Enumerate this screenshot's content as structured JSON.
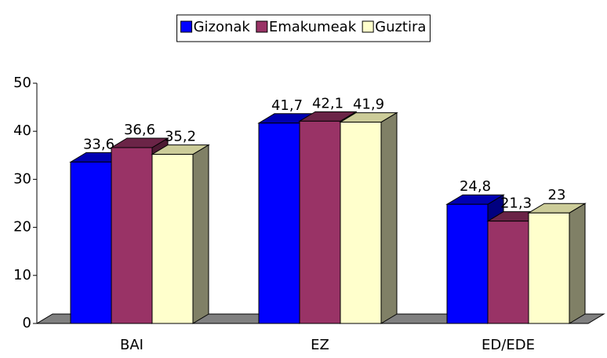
{
  "chart_data": {
    "type": "bar3d",
    "categories": [
      "BAI",
      "EZ",
      "ED/EDE"
    ],
    "series": [
      {
        "name": "Gizonak",
        "color": "#0000ff",
        "values": [
          33.6,
          41.7,
          24.8
        ],
        "value_labels": [
          "33,6",
          "41,7",
          "24,8"
        ]
      },
      {
        "name": "Emakumeak",
        "color": "#993366",
        "values": [
          36.6,
          42.1,
          21.3
        ],
        "value_labels": [
          "36,6",
          "42,1",
          "21,3"
        ]
      },
      {
        "name": "Guztira",
        "color": "#ffffcc",
        "values": [
          35.2,
          41.9,
          23
        ],
        "value_labels": [
          "35,2",
          "41,9",
          "23"
        ]
      }
    ],
    "ylim": [
      0,
      50
    ],
    "yticks": [
      0,
      10,
      20,
      30,
      40,
      50
    ],
    "legend": "top"
  }
}
